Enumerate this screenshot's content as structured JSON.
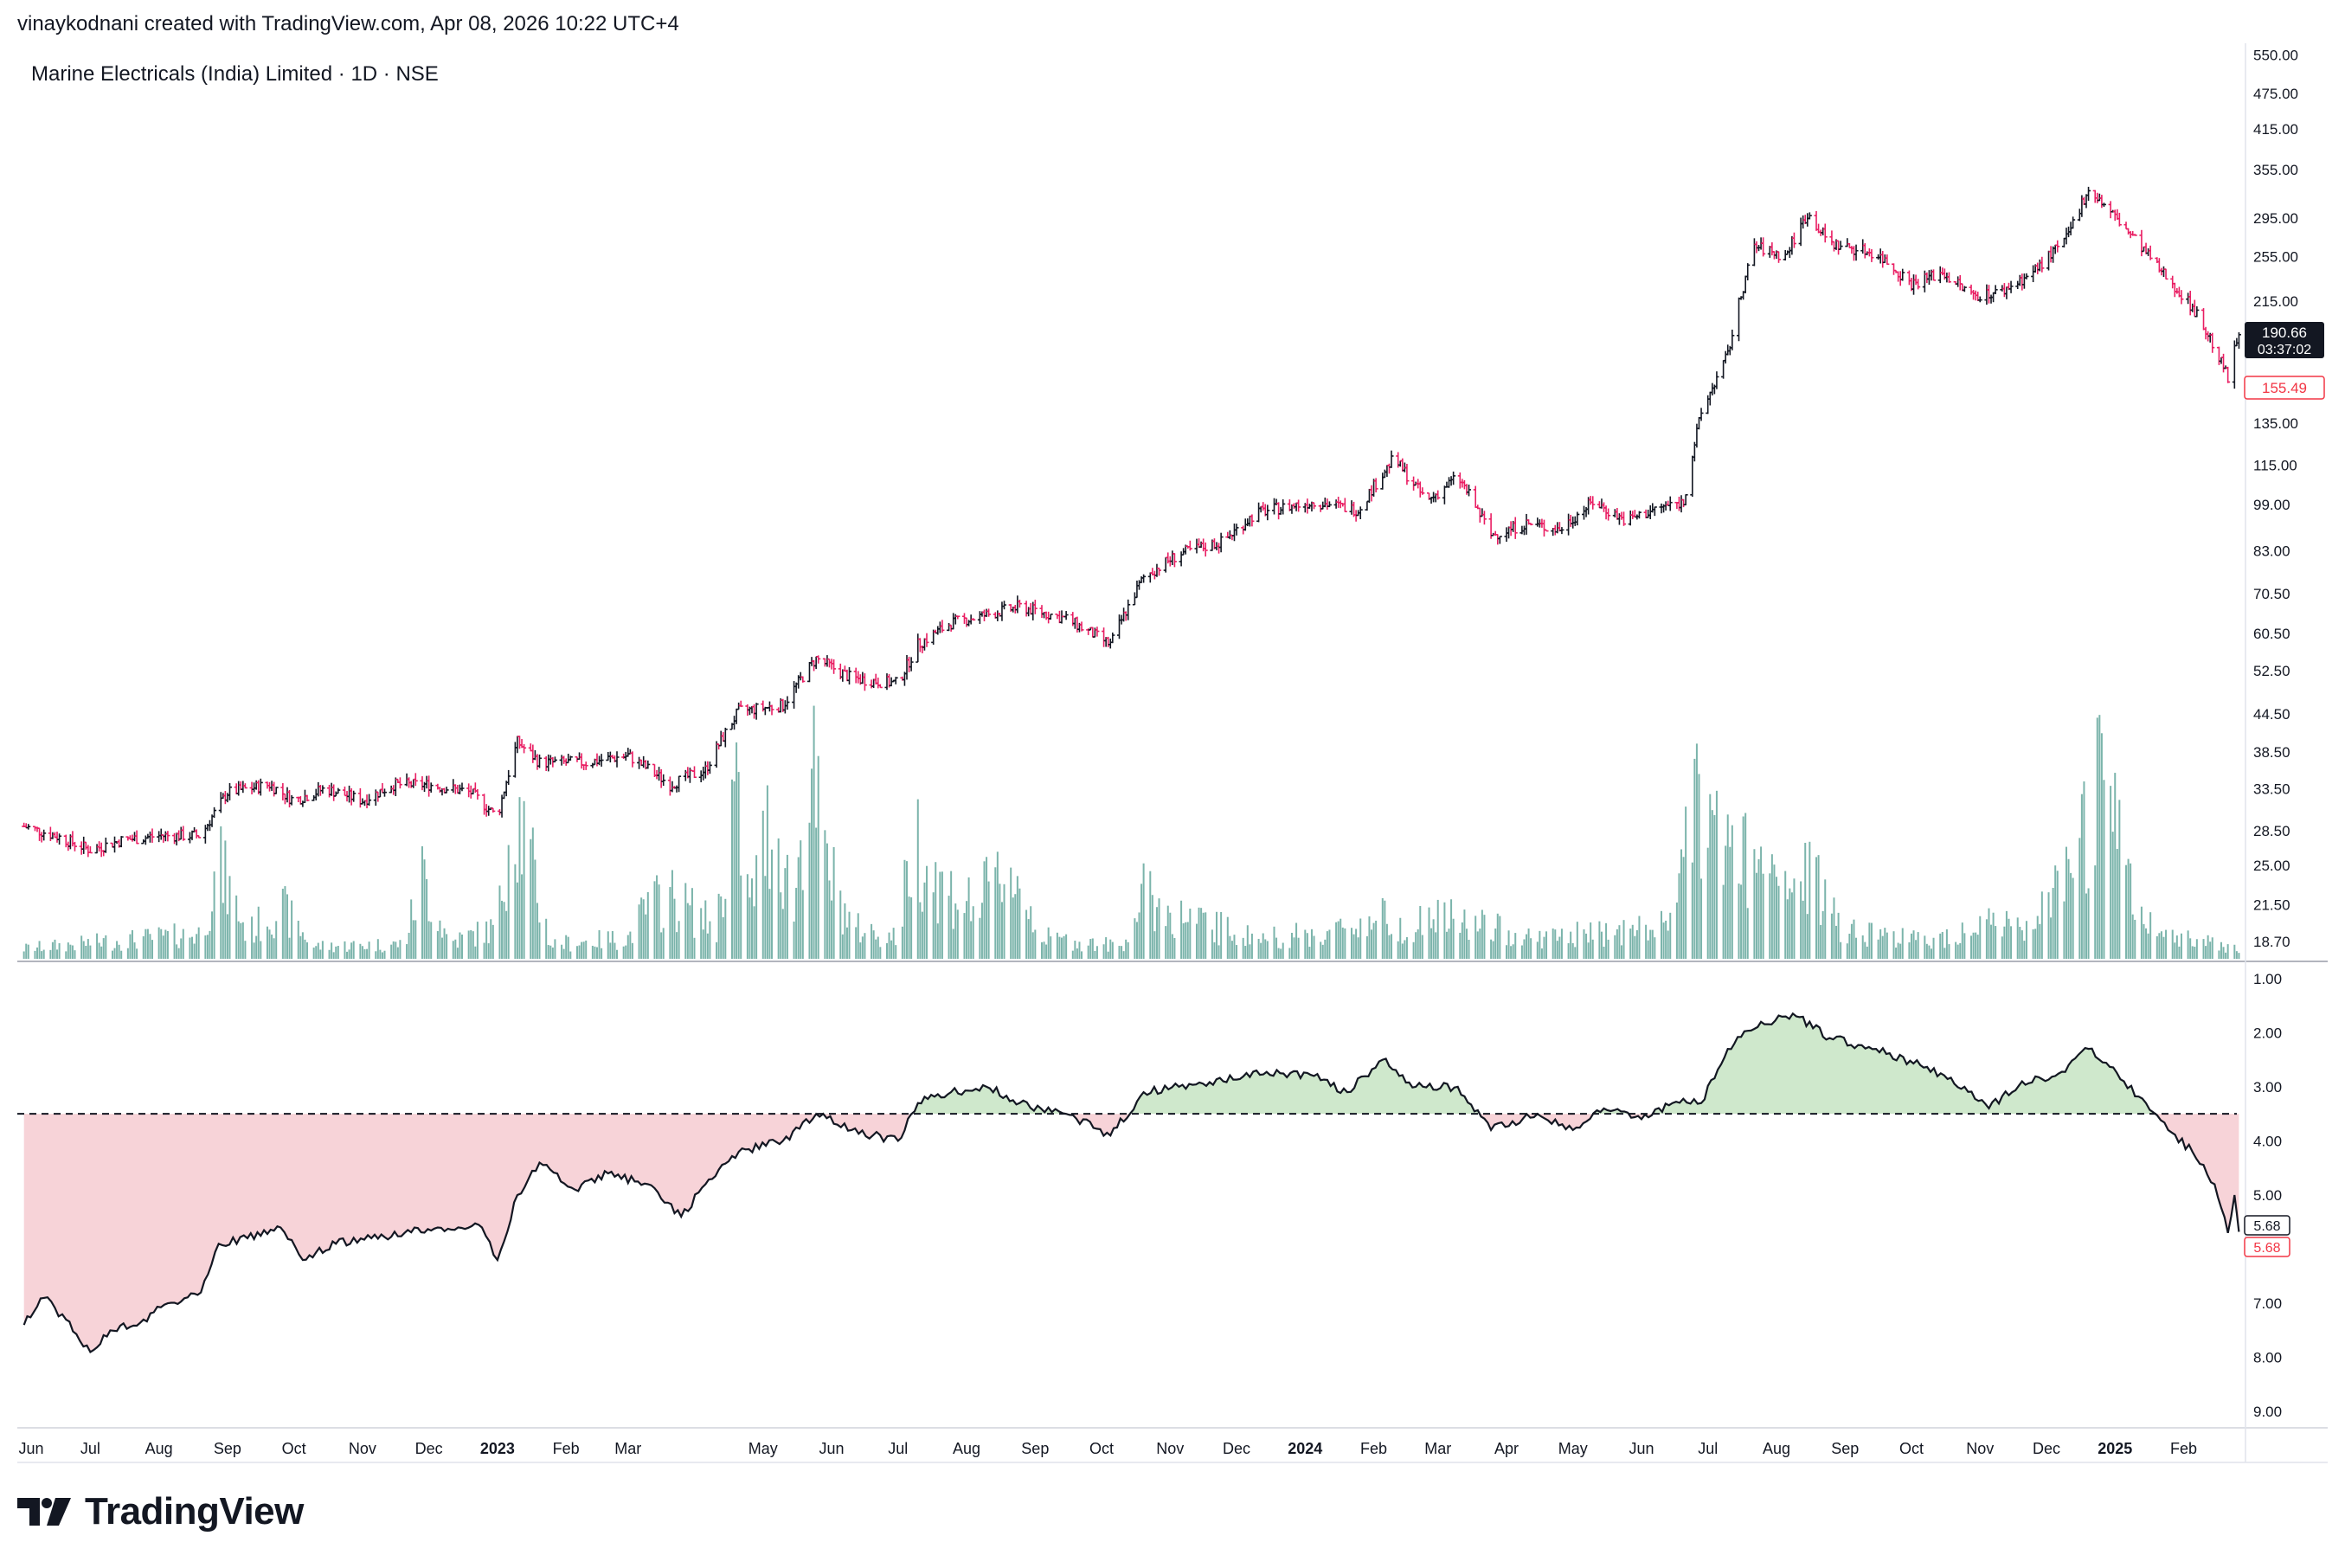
{
  "header": {
    "attribution": "vinaykodnani created with TradingView.com, Apr 08, 2026 10:22 UTC+4"
  },
  "brand": {
    "name": "TradingView",
    "icon": "tradingview-logo-icon"
  },
  "colors": {
    "up": "#131722",
    "down": "#e91e63",
    "volume": "#4f9b8f",
    "ratio_above_fill": "#cfe8cc",
    "ratio_below_fill": "#f7d3d8",
    "last_price_bg": "#131722",
    "low_tag": "#f23645"
  },
  "chart_data": [
    {
      "type": "candlestick",
      "title": "Marine Electricals (India) Limited · 1D · NSE",
      "scale": "log",
      "ylim": [
        17.5,
        560
      ],
      "y_ticks": [
        "550.00",
        "475.00",
        "415.00",
        "355.00",
        "295.00",
        "255.00",
        "215.00",
        "135.00",
        "115.00",
        "99.00",
        "83.00",
        "70.50",
        "60.50",
        "52.50",
        "44.50",
        "38.50",
        "33.50",
        "28.50",
        "25.00",
        "21.50",
        "18.70"
      ],
      "last_price": {
        "value": "190.66",
        "countdown": "03:37:02"
      },
      "low_marker": "155.49",
      "x_labels": [
        "Jun",
        "Jul",
        "Aug",
        "Sep",
        "Oct",
        "Nov",
        "Dec",
        "2023",
        "Feb",
        "Mar",
        "May",
        "Jun",
        "Jul",
        "Aug",
        "Sep",
        "Oct",
        "Nov",
        "Dec",
        "2024",
        "Feb",
        "Mar",
        "Apr",
        "May",
        "Jun",
        "Jul",
        "Aug",
        "Sep",
        "Oct",
        "Nov",
        "Dec",
        "2025",
        "Feb"
      ],
      "bold_x_labels": [
        "2023",
        "2024",
        "2025"
      ],
      "price_path": [
        [
          "2022-06-01",
          29
        ],
        [
          "2022-06-15",
          28
        ],
        [
          "2022-07-01",
          26.5
        ],
        [
          "2022-07-15",
          27.5
        ],
        [
          "2022-08-01",
          28
        ],
        [
          "2022-08-20",
          28
        ],
        [
          "2022-09-01",
          33
        ],
        [
          "2022-09-20",
          34
        ],
        [
          "2022-10-01",
          32
        ],
        [
          "2022-10-15",
          33.5
        ],
        [
          "2022-11-01",
          32
        ],
        [
          "2022-11-15",
          34
        ],
        [
          "2022-12-01",
          34
        ],
        [
          "2022-12-20",
          33
        ],
        [
          "2023-01-01",
          30
        ],
        [
          "2023-01-10",
          40
        ],
        [
          "2023-01-20",
          37
        ],
        [
          "2023-02-10",
          37
        ],
        [
          "2023-03-01",
          38
        ],
        [
          "2023-03-20",
          34
        ],
        [
          "2023-04-05",
          36
        ],
        [
          "2023-04-20",
          45
        ],
        [
          "2023-05-10",
          46
        ],
        [
          "2023-05-25",
          55
        ],
        [
          "2023-06-10",
          51
        ],
        [
          "2023-07-01",
          50
        ],
        [
          "2023-07-10",
          58
        ],
        [
          "2023-07-25",
          63
        ],
        [
          "2023-08-10",
          65
        ],
        [
          "2023-08-25",
          67
        ],
        [
          "2023-09-15",
          64
        ],
        [
          "2023-10-05",
          58
        ],
        [
          "2023-10-20",
          75
        ],
        [
          "2023-11-05",
          82
        ],
        [
          "2023-11-25",
          86
        ],
        [
          "2023-12-10",
          96
        ],
        [
          "2024-01-05",
          100
        ],
        [
          "2024-01-25",
          97
        ],
        [
          "2024-02-10",
          118
        ],
        [
          "2024-02-25",
          100
        ],
        [
          "2024-03-10",
          110
        ],
        [
          "2024-03-25",
          88
        ],
        [
          "2024-04-10",
          92
        ],
        [
          "2024-04-25",
          90
        ],
        [
          "2024-05-10",
          100
        ],
        [
          "2024-05-25",
          93
        ],
        [
          "2024-06-10",
          98
        ],
        [
          "2024-06-20",
          100
        ],
        [
          "2024-06-28",
          140
        ],
        [
          "2024-07-10",
          175
        ],
        [
          "2024-07-22",
          265
        ],
        [
          "2024-08-05",
          255
        ],
        [
          "2024-08-15",
          300
        ],
        [
          "2024-08-25",
          268
        ],
        [
          "2024-09-15",
          258
        ],
        [
          "2024-10-01",
          230
        ],
        [
          "2024-10-15",
          240
        ],
        [
          "2024-10-28",
          220
        ],
        [
          "2024-11-10",
          222
        ],
        [
          "2024-11-25",
          240
        ],
        [
          "2024-12-10",
          272
        ],
        [
          "2024-12-20",
          330
        ],
        [
          "2025-01-05",
          285
        ],
        [
          "2025-01-20",
          245
        ],
        [
          "2025-02-05",
          210
        ],
        [
          "2025-02-15",
          180
        ],
        [
          "2025-02-21",
          160
        ],
        [
          "2025-02-26",
          190.66
        ]
      ],
      "volume_path": [
        [
          "2022-06-01",
          0.05
        ],
        [
          "2022-08-20",
          0.12
        ],
        [
          "2022-08-28",
          0.45
        ],
        [
          "2022-09-10",
          0.12
        ],
        [
          "2022-09-25",
          0.25
        ],
        [
          "2022-10-10",
          0.06
        ],
        [
          "2022-11-20",
          0.07
        ],
        [
          "2022-11-28",
          0.4
        ],
        [
          "2022-12-10",
          0.08
        ],
        [
          "2023-01-01",
          0.15
        ],
        [
          "2023-01-08",
          0.8
        ],
        [
          "2023-01-15",
          0.5
        ],
        [
          "2023-01-25",
          0.07
        ],
        [
          "2023-03-01",
          0.1
        ],
        [
          "2023-03-10",
          0.25
        ],
        [
          "2023-03-20",
          0.3
        ],
        [
          "2023-04-10",
          0.15
        ],
        [
          "2023-04-18",
          0.8
        ],
        [
          "2023-04-25",
          0.25
        ],
        [
          "2023-05-05",
          0.7
        ],
        [
          "2023-05-15",
          0.25
        ],
        [
          "2023-05-22",
          0.98
        ],
        [
          "2023-05-28",
          0.5
        ],
        [
          "2023-06-10",
          0.15
        ],
        [
          "2023-07-01",
          0.1
        ],
        [
          "2023-07-08",
          0.6
        ],
        [
          "2023-07-20",
          0.35
        ],
        [
          "2023-08-05",
          0.25
        ],
        [
          "2023-08-20",
          0.45
        ],
        [
          "2023-09-05",
          0.1
        ],
        [
          "2023-10-10",
          0.06
        ],
        [
          "2023-10-20",
          0.3
        ],
        [
          "2023-11-05",
          0.2
        ],
        [
          "2023-12-10",
          0.1
        ],
        [
          "2024-01-10",
          0.12
        ],
        [
          "2024-02-05",
          0.2
        ],
        [
          "2024-02-15",
          0.15
        ],
        [
          "2024-03-01",
          0.2
        ],
        [
          "2024-04-15",
          0.1
        ],
        [
          "2024-05-10",
          0.12
        ],
        [
          "2024-06-10",
          0.15
        ],
        [
          "2024-06-20",
          0.45
        ],
        [
          "2024-06-28",
          0.75
        ],
        [
          "2024-07-08",
          0.55
        ],
        [
          "2024-07-20",
          0.45
        ],
        [
          "2024-08-05",
          0.3
        ],
        [
          "2024-08-15",
          0.4
        ],
        [
          "2024-09-01",
          0.15
        ],
        [
          "2024-10-10",
          0.08
        ],
        [
          "2024-11-05",
          0.2
        ],
        [
          "2024-11-20",
          0.12
        ],
        [
          "2024-12-10",
          0.35
        ],
        [
          "2024-12-18",
          0.6
        ],
        [
          "2024-12-25",
          0.9
        ],
        [
          "2025-01-05",
          0.45
        ],
        [
          "2025-01-15",
          0.15
        ],
        [
          "2025-02-26",
          0.05
        ]
      ]
    },
    {
      "type": "area",
      "scale": "reversed",
      "ylim": [
        9.3,
        0.7
      ],
      "y_ticks": [
        "1.00",
        "2.00",
        "3.00",
        "4.00",
        "5.00",
        "6.00",
        "7.00",
        "8.00",
        "9.00"
      ],
      "baseline": 3.5,
      "last_value": "5.68",
      "last_value_alt": "5.68",
      "ratio_path": [
        [
          "2022-06-01",
          7.4
        ],
        [
          "2022-06-10",
          6.9
        ],
        [
          "2022-06-20",
          7.3
        ],
        [
          "2022-07-01",
          7.9
        ],
        [
          "2022-07-10",
          7.5
        ],
        [
          "2022-07-25",
          7.3
        ],
        [
          "2022-08-05",
          7.0
        ],
        [
          "2022-08-20",
          6.8
        ],
        [
          "2022-08-28",
          5.9
        ],
        [
          "2022-09-10",
          5.8
        ],
        [
          "2022-09-25",
          5.6
        ],
        [
          "2022-10-05",
          6.2
        ],
        [
          "2022-10-20",
          5.9
        ],
        [
          "2022-11-05",
          5.8
        ],
        [
          "2022-11-20",
          5.7
        ],
        [
          "2022-12-05",
          5.6
        ],
        [
          "2022-12-25",
          5.6
        ],
        [
          "2023-01-01",
          6.2
        ],
        [
          "2023-01-10",
          5.0
        ],
        [
          "2023-01-20",
          4.4
        ],
        [
          "2023-02-05",
          4.9
        ],
        [
          "2023-02-20",
          4.6
        ],
        [
          "2023-03-10",
          4.8
        ],
        [
          "2023-03-25",
          5.4
        ],
        [
          "2023-04-05",
          4.8
        ],
        [
          "2023-04-20",
          4.2
        ],
        [
          "2023-05-10",
          4.0
        ],
        [
          "2023-05-25",
          3.5
        ],
        [
          "2023-06-10",
          3.8
        ],
        [
          "2023-07-01",
          4.0
        ],
        [
          "2023-07-10",
          3.3
        ],
        [
          "2023-07-25",
          3.1
        ],
        [
          "2023-08-10",
          3.0
        ],
        [
          "2023-08-25",
          3.3
        ],
        [
          "2023-09-15",
          3.5
        ],
        [
          "2023-10-05",
          3.9
        ],
        [
          "2023-10-20",
          3.1
        ],
        [
          "2023-11-05",
          3.0
        ],
        [
          "2023-11-25",
          2.9
        ],
        [
          "2023-12-10",
          2.7
        ],
        [
          "2024-01-05",
          2.8
        ],
        [
          "2024-01-20",
          3.1
        ],
        [
          "2024-02-05",
          2.5
        ],
        [
          "2024-02-20",
          3.0
        ],
        [
          "2024-03-10",
          3.0
        ],
        [
          "2024-03-25",
          3.8
        ],
        [
          "2024-04-15",
          3.5
        ],
        [
          "2024-05-01",
          3.8
        ],
        [
          "2024-05-15",
          3.4
        ],
        [
          "2024-06-01",
          3.6
        ],
        [
          "2024-06-15",
          3.3
        ],
        [
          "2024-06-28",
          3.3
        ],
        [
          "2024-07-10",
          2.3
        ],
        [
          "2024-07-25",
          1.8
        ],
        [
          "2024-08-10",
          1.7
        ],
        [
          "2024-08-25",
          2.1
        ],
        [
          "2024-09-15",
          2.3
        ],
        [
          "2024-10-05",
          2.6
        ],
        [
          "2024-10-25",
          3.0
        ],
        [
          "2024-11-05",
          3.4
        ],
        [
          "2024-11-20",
          2.9
        ],
        [
          "2024-12-05",
          2.8
        ],
        [
          "2024-12-20",
          2.3
        ],
        [
          "2025-01-05",
          2.9
        ],
        [
          "2025-01-15",
          3.3
        ],
        [
          "2025-01-25",
          3.8
        ],
        [
          "2025-02-05",
          4.2
        ],
        [
          "2025-02-15",
          4.8
        ],
        [
          "2025-02-21",
          5.7
        ],
        [
          "2025-02-24",
          5.0
        ],
        [
          "2025-02-26",
          5.68
        ]
      ]
    }
  ]
}
